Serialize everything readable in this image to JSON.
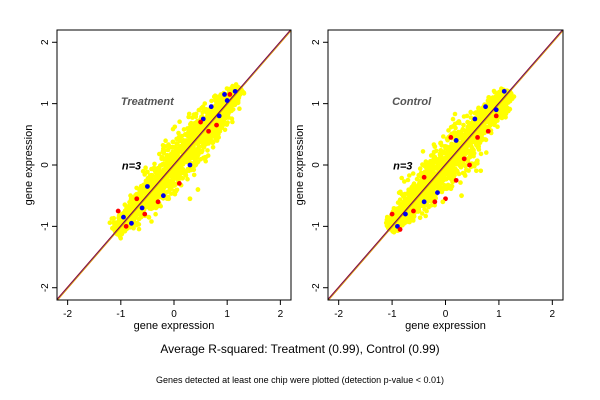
{
  "colors": {
    "background": "#ffffff",
    "point_yellow": "#ffff00",
    "point_blue": "#0000ee",
    "point_red": "#ff0000",
    "diag_red": "#cc0000",
    "diag_blue": "#0000cc",
    "diag_orange": "#e08a00",
    "axis": "#000000",
    "panel_title": "#555555"
  },
  "captions": {
    "line1": "Average R-squared: Treatment (0.99), Control (0.99)",
    "line2": "Genes detected at least one chip were plotted (detection p-value < 0.01)"
  },
  "chart_data": [
    {
      "type": "scatter",
      "title": "Treatment",
      "annotation": "n=3",
      "xlabel": "gene expression",
      "ylabel": "gene expression",
      "xlim": [
        -2.2,
        2.2
      ],
      "ylim": [
        -2.2,
        2.2
      ],
      "xticks": [
        -2,
        -1,
        0,
        1,
        2
      ],
      "yticks": [
        -2,
        -1,
        0,
        1,
        2
      ],
      "grid": false,
      "reference_lines": [
        {
          "slope": 1,
          "intercept": 0,
          "color": "red"
        },
        {
          "slope": 1,
          "intercept": 0,
          "color": "blue"
        },
        {
          "slope": 1,
          "intercept": 0,
          "color": "orange"
        }
      ],
      "point_cloud": {
        "x_range": [
          -1.1,
          1.25
        ],
        "center": [
          0.0,
          0.0
        ],
        "along_diagonal": true
      },
      "series": [
        {
          "color": "blue",
          "x": [
            -0.95,
            -0.8,
            -0.5,
            -0.6,
            0.7,
            0.85,
            1.0,
            0.95,
            1.15,
            0.3,
            -0.2,
            0.55
          ],
          "y": [
            -0.85,
            -0.95,
            -0.35,
            -0.7,
            0.95,
            0.8,
            1.05,
            1.15,
            1.2,
            0.0,
            -0.5,
            0.75
          ]
        },
        {
          "color": "red",
          "x": [
            -1.05,
            -0.9,
            -0.7,
            -0.3,
            0.1,
            0.5,
            0.8,
            1.05,
            0.65,
            -0.55
          ],
          "y": [
            -0.75,
            -1.0,
            -0.55,
            -0.6,
            -0.3,
            0.7,
            0.65,
            1.15,
            0.55,
            -0.8
          ]
        },
        {
          "color": "yellow",
          "x": [
            0.05,
            -0.1,
            0.3,
            0.45
          ],
          "y": [
            0.35,
            -0.55,
            -0.55,
            -0.4
          ]
        }
      ]
    },
    {
      "type": "scatter",
      "title": "Control",
      "annotation": "n=3",
      "xlabel": "gene expression",
      "ylabel": "gene expression",
      "xlim": [
        -2.2,
        2.2
      ],
      "ylim": [
        -2.2,
        2.2
      ],
      "xticks": [
        -2,
        -1,
        0,
        1,
        2
      ],
      "yticks": [
        -2,
        -1,
        0,
        1,
        2
      ],
      "grid": false,
      "reference_lines": [
        {
          "slope": 1,
          "intercept": 0,
          "color": "red"
        },
        {
          "slope": 1,
          "intercept": 0,
          "color": "blue"
        },
        {
          "slope": 1,
          "intercept": 0,
          "color": "orange"
        }
      ],
      "point_cloud": {
        "x_range": [
          -1.05,
          1.2
        ],
        "center": [
          0.0,
          0.0
        ],
        "along_diagonal": true
      },
      "series": [
        {
          "color": "blue",
          "x": [
            -0.9,
            -0.75,
            -0.4,
            0.55,
            0.75,
            0.95,
            1.1,
            0.2,
            -0.15
          ],
          "y": [
            -1.0,
            -0.8,
            -0.6,
            0.75,
            0.95,
            0.9,
            1.2,
            0.4,
            -0.45
          ]
        },
        {
          "color": "red",
          "x": [
            -1.0,
            -0.85,
            -0.6,
            -0.2,
            0.0,
            0.2,
            0.35,
            0.45,
            0.6,
            0.8,
            0.95,
            -0.4,
            0.1
          ],
          "y": [
            -0.8,
            -1.05,
            -0.75,
            -0.6,
            -0.55,
            -0.25,
            0.1,
            0.0,
            0.45,
            0.55,
            0.8,
            -0.2,
            0.45
          ]
        },
        {
          "color": "yellow",
          "x": [
            -0.2,
            -0.05,
            0.3
          ],
          "y": [
            0.3,
            -0.6,
            -0.5
          ]
        }
      ]
    }
  ]
}
